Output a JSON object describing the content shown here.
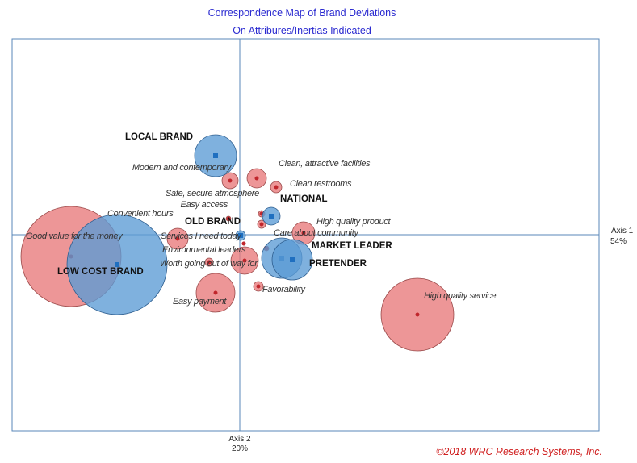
{
  "chart_data": {
    "type": "scatter",
    "title": [
      "Correspondence Map of Brand Deviations",
      "On Attribures/Inertias Indicated"
    ],
    "x_axis": {
      "label": "Axis 1",
      "inertia": "54%"
    },
    "y_axis": {
      "label": "Axis 2",
      "inertia": "20%"
    },
    "grid": false,
    "colors": {
      "brands": "#5b9bd5",
      "attributes": "#e8787a",
      "title": "#2a2ad0",
      "copyright": "#d02020"
    },
    "series": [
      {
        "group": "brands",
        "points": [
          {
            "label": "LOCAL BRAND",
            "x": -0.3,
            "y": 0.98,
            "size": 0.26
          },
          {
            "label": "NATIONAL",
            "x": 0.39,
            "y": 0.23,
            "size": 0.11
          },
          {
            "label": "OLD BRAND",
            "x": 0.01,
            "y": -0.01,
            "size": 0.06
          },
          {
            "label": "MARKET LEADER",
            "x": 0.52,
            "y": -0.29,
            "size": 0.25
          },
          {
            "label": "PRETENDER",
            "x": 0.65,
            "y": -0.31,
            "size": 0.25
          },
          {
            "label": "LOW COST BRAND",
            "x": -1.52,
            "y": -0.37,
            "size": 0.62
          }
        ]
      },
      {
        "group": "attributes",
        "points": [
          {
            "label": "Modern and contemporary",
            "x": -0.12,
            "y": 0.67,
            "size": 0.1
          },
          {
            "label": "Clean, attractive facilities",
            "x": 0.21,
            "y": 0.7,
            "size": 0.12
          },
          {
            "label": "Clean restrooms",
            "x": 0.45,
            "y": 0.59,
            "size": 0.07
          },
          {
            "label": "Safe, secure atmosphere",
            "x": 0.27,
            "y": 0.26,
            "size": 0.04
          },
          {
            "label": "Easy access",
            "x": -0.14,
            "y": 0.2,
            "size": 0.03
          },
          {
            "label": "Convenient hours",
            "x": 0.27,
            "y": 0.13,
            "size": 0.05
          },
          {
            "label": "High quality product",
            "x": 0.79,
            "y": 0.02,
            "size": 0.14
          },
          {
            "label": "Care about community",
            "x": 0.33,
            "y": -0.17,
            "size": 0.03
          },
          {
            "label": "Services I need today",
            "x": -0.77,
            "y": -0.05,
            "size": 0.13
          },
          {
            "label": "Environmental leaders",
            "x": 0.05,
            "y": -0.11,
            "size": 0.02
          },
          {
            "label": "Worth going out of way for",
            "x": -0.38,
            "y": -0.34,
            "size": 0.05
          },
          {
            "label": "",
            "x": 0.06,
            "y": -0.32,
            "size": 0.17
          },
          {
            "label": "Favorability",
            "x": 0.23,
            "y": -0.64,
            "size": 0.06
          },
          {
            "label": "Easy payment",
            "x": -0.3,
            "y": -0.72,
            "size": 0.24
          },
          {
            "label": "High quality service",
            "x": 2.2,
            "y": -0.99,
            "size": 0.45
          },
          {
            "label": "Good value for the money",
            "x": -2.09,
            "y": -0.27,
            "size": 0.62
          }
        ]
      }
    ]
  },
  "copyright": "©2018 WRC Research Systems, Inc."
}
